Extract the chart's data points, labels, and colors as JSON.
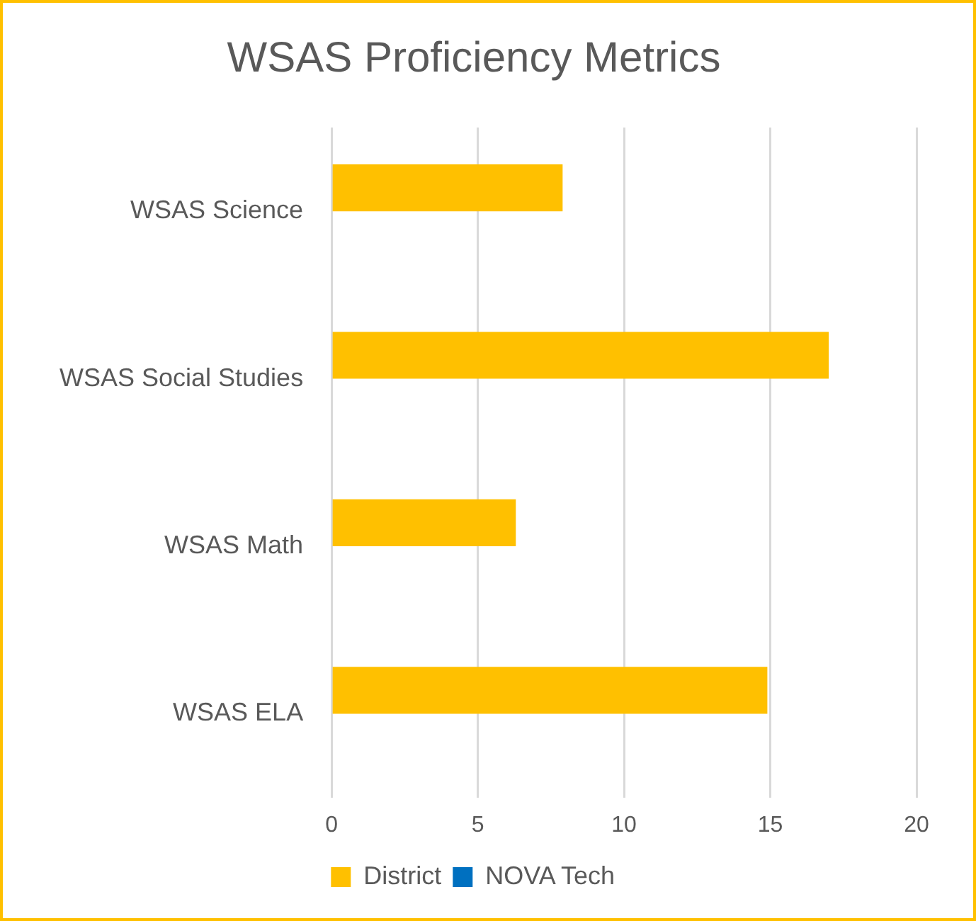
{
  "chart_data": {
    "type": "bar",
    "title": "WSAS Proficiency Metrics",
    "orientation": "horizontal",
    "categories": [
      "WSAS Science",
      "WSAS Social Studies",
      "WSAS Math",
      "WSAS ELA"
    ],
    "series": [
      {
        "name": "District",
        "color": "#ffc000",
        "values": [
          7.9,
          17.0,
          6.3,
          14.9
        ]
      },
      {
        "name": "NOVA Tech",
        "color": "#0070c0",
        "values": [
          0,
          0,
          0,
          0
        ]
      }
    ],
    "xlim": [
      0,
      20
    ],
    "xticks": [
      0,
      5,
      10,
      15,
      20
    ],
    "grid": "x",
    "legend": "bottom"
  }
}
